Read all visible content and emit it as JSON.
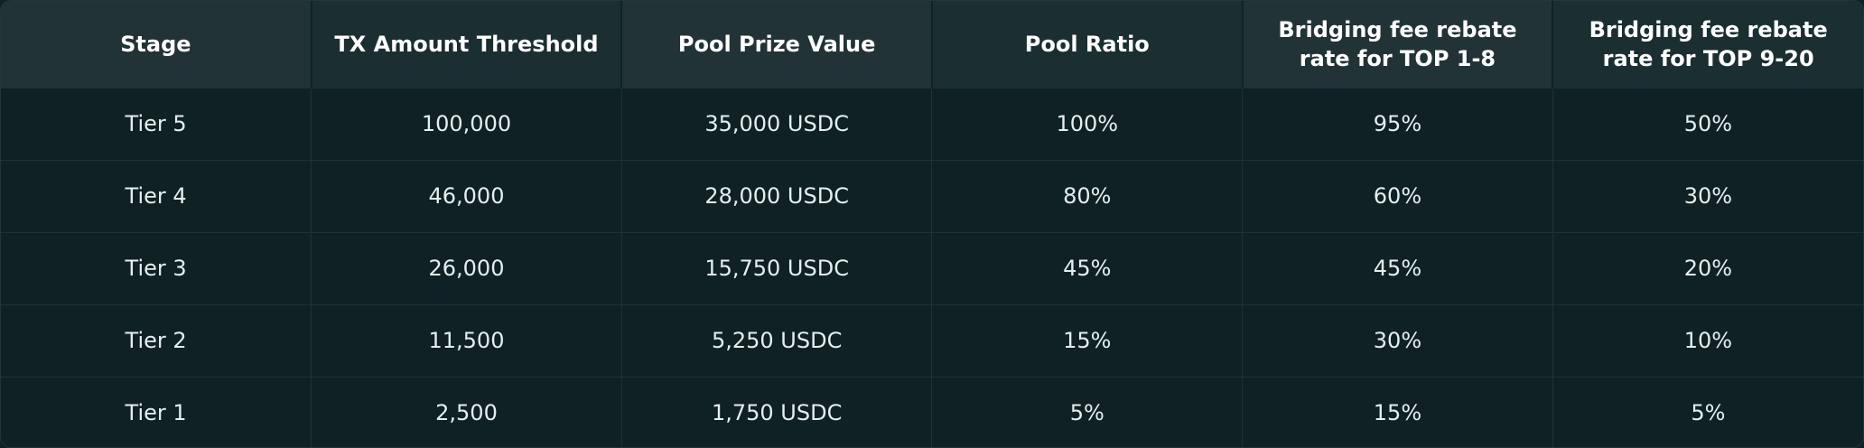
{
  "table": {
    "headers": [
      "Stage",
      "TX Amount Threshold",
      "Pool Prize Value",
      "Pool Ratio",
      "Bridging fee rebate rate for TOP 1-8",
      "Bridging fee rebate rate for TOP 9-20"
    ],
    "rows": [
      [
        "Tier 5",
        "100,000",
        "35,000 USDC",
        "100%",
        "95%",
        "50%"
      ],
      [
        "Tier 4",
        "46,000",
        "28,000 USDC",
        "80%",
        "60%",
        "30%"
      ],
      [
        "Tier 3",
        "26,000",
        "15,750 USDC",
        "45%",
        "45%",
        "20%"
      ],
      [
        "Tier 2",
        "11,500",
        "5,250 USDC",
        "15%",
        "30%",
        "10%"
      ],
      [
        "Tier 1",
        "2,500",
        "1,750 USDC",
        "5%",
        "15%",
        "5%"
      ]
    ]
  }
}
